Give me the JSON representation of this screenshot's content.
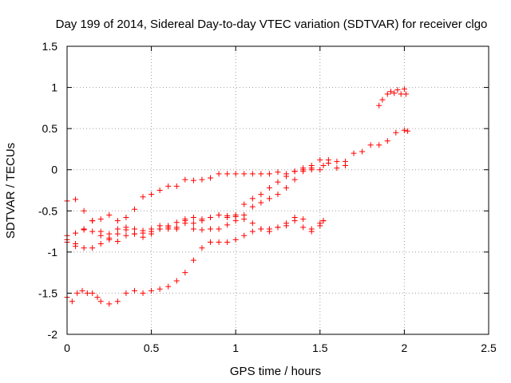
{
  "chart_data": {
    "type": "scatter",
    "title": "Day 199 of 2014, Sidereal Day-to-day VTEC variation (SDTVAR) for receiver clgo",
    "xlabel": "GPS time / hours",
    "ylabel": "SDTVAR / TECUs",
    "xlim": [
      0,
      2.5
    ],
    "ylim": [
      -2,
      1.5
    ],
    "xticks": [
      "0",
      "0.5",
      "1",
      "1.5",
      "2",
      "2.5"
    ],
    "yticks": [
      "-2",
      "-1.5",
      "-1",
      "-0.5",
      "0",
      "0.5",
      "1",
      "1.5"
    ],
    "xtick_values": [
      0,
      0.5,
      1,
      1.5,
      2,
      2.5
    ],
    "ytick_values": [
      -2,
      -1.5,
      -1,
      -0.5,
      0,
      0.5,
      1,
      1.5
    ],
    "grid": true,
    "marker": "+",
    "color": "#ff0000",
    "series": [
      {
        "x": [
          0,
          0.05,
          0.1,
          0.15,
          0.2,
          0.25,
          0.3,
          0.35,
          0.4,
          0.45,
          0.5,
          0.55,
          0.6,
          0.65,
          0.7,
          0.75,
          0.8,
          0.85,
          0.9,
          0.95,
          1.0,
          1.05,
          1.1,
          1.15,
          1.2,
          1.25,
          1.3,
          1.35,
          1.4,
          1.45,
          1.5,
          1.52,
          1.55,
          1.6,
          1.65,
          1.7,
          1.75,
          1.8,
          1.85,
          1.9,
          1.95,
          2.0,
          2.02
        ],
        "y": [
          -0.38,
          -0.36,
          -0.5,
          -0.62,
          -0.6,
          -0.55,
          -0.62,
          -0.58,
          -0.48,
          -0.33,
          -0.3,
          -0.25,
          -0.2,
          -0.2,
          -0.12,
          -0.13,
          -0.12,
          -0.1,
          -0.05,
          -0.05,
          -0.05,
          -0.05,
          -0.05,
          -0.05,
          -0.05,
          -0.03,
          -0.05,
          -0.02,
          0.0,
          0.02,
          0.0,
          0.05,
          0.12,
          0.1,
          0.05,
          0.2,
          0.22,
          0.3,
          0.3,
          0.35,
          0.45,
          0.48,
          0.47
        ]
      },
      {
        "x": [
          0,
          0.05,
          0.1,
          0.15,
          0.2,
          0.25,
          0.3,
          0.35,
          0.4,
          0.45,
          0.5,
          0.55,
          0.6,
          0.65,
          0.7,
          0.75,
          0.8,
          0.85,
          0.9,
          0.95,
          1.0,
          1.05,
          1.1,
          1.15,
          1.2,
          1.25,
          1.3,
          1.35,
          1.4,
          1.45,
          1.5,
          1.55,
          1.6,
          1.65
        ],
        "y": [
          -0.8,
          -0.77,
          -0.73,
          -0.75,
          -0.8,
          -0.83,
          -0.78,
          -0.73,
          -0.72,
          -0.74,
          -0.72,
          -0.68,
          -0.72,
          -0.64,
          -0.6,
          -0.58,
          -0.62,
          -0.58,
          -0.55,
          -0.56,
          -0.55,
          -0.42,
          -0.35,
          -0.3,
          -0.22,
          -0.15,
          -0.08,
          -0.02,
          0.02,
          0.05,
          0.12,
          0.08,
          0.02,
          0.1
        ]
      },
      {
        "x": [
          0,
          0.05,
          0.1,
          0.15,
          0.2,
          0.25,
          0.3,
          0.35,
          0.4,
          0.45,
          0.5,
          0.55,
          0.6,
          0.65,
          0.7,
          0.75,
          0.8,
          0.85,
          0.9,
          0.95,
          1.0,
          1.05,
          1.1,
          1.15,
          1.2,
          1.25,
          1.3,
          1.35,
          1.4,
          1.45
        ],
        "y": [
          -0.85,
          -0.9,
          -0.72,
          -0.62,
          -0.75,
          -0.85,
          -0.87,
          -0.8,
          -0.78,
          -0.77,
          -0.78,
          -0.72,
          -0.68,
          -0.7,
          -0.65,
          -0.72,
          -0.73,
          -0.72,
          -0.72,
          -0.67,
          -0.62,
          -0.55,
          -0.45,
          -0.4,
          -0.35,
          -0.3,
          -0.22,
          -0.12,
          -0.02,
          0.0
        ]
      },
      {
        "x": [
          0,
          0.05,
          0.1,
          0.15,
          0.2,
          0.25,
          0.3,
          0.35,
          0.4,
          0.45,
          0.5,
          0.55,
          0.6,
          0.65,
          0.7,
          0.75,
          0.8,
          0.85,
          0.9,
          0.95,
          1.0,
          1.05,
          1.1,
          1.15,
          1.2,
          1.25,
          1.3,
          1.35,
          1.4,
          1.45,
          1.5,
          1.52
        ],
        "y": [
          -0.88,
          -0.93,
          -0.95,
          -0.95,
          -0.9,
          -0.78,
          -0.72,
          -0.7,
          -0.78,
          -0.82,
          -0.75,
          -0.72,
          -0.7,
          -0.72,
          -0.62,
          -0.65,
          -0.6,
          -0.58,
          -0.55,
          -0.58,
          -0.57,
          -0.6,
          -0.65,
          -0.72,
          -0.75,
          -0.7,
          -0.65,
          -0.58,
          -0.6,
          -0.72,
          -0.68,
          -0.62
        ]
      },
      {
        "x": [
          0,
          0.03,
          0.06,
          0.09,
          0.12,
          0.15,
          0.18,
          0.2,
          0.25,
          0.3,
          0.35,
          0.4,
          0.45,
          0.5,
          0.55,
          0.6,
          0.65,
          0.7,
          0.75,
          0.8,
          0.85,
          0.9,
          0.95,
          1.0,
          1.05,
          1.1,
          1.15,
          1.2,
          1.25,
          1.3,
          1.35,
          1.4,
          1.45,
          1.5,
          1.52
        ],
        "y": [
          -1.55,
          -1.6,
          -1.5,
          -1.47,
          -1.5,
          -1.5,
          -1.55,
          -1.6,
          -1.63,
          -1.6,
          -1.5,
          -1.47,
          -1.5,
          -1.47,
          -1.45,
          -1.42,
          -1.35,
          -1.25,
          -1.1,
          -0.95,
          -0.88,
          -0.88,
          -0.88,
          -0.85,
          -0.8,
          -0.75,
          -0.72,
          -0.72,
          -0.7,
          -0.68,
          -0.62,
          -0.7,
          -0.75,
          -0.65,
          -0.62
        ]
      },
      {
        "x": [
          1.85,
          1.87,
          1.9,
          1.92,
          1.94,
          1.96,
          1.98,
          2.0,
          2.01
        ],
        "y": [
          0.78,
          0.85,
          0.92,
          0.95,
          0.93,
          0.97,
          0.92,
          0.98,
          0.92
        ]
      }
    ]
  }
}
